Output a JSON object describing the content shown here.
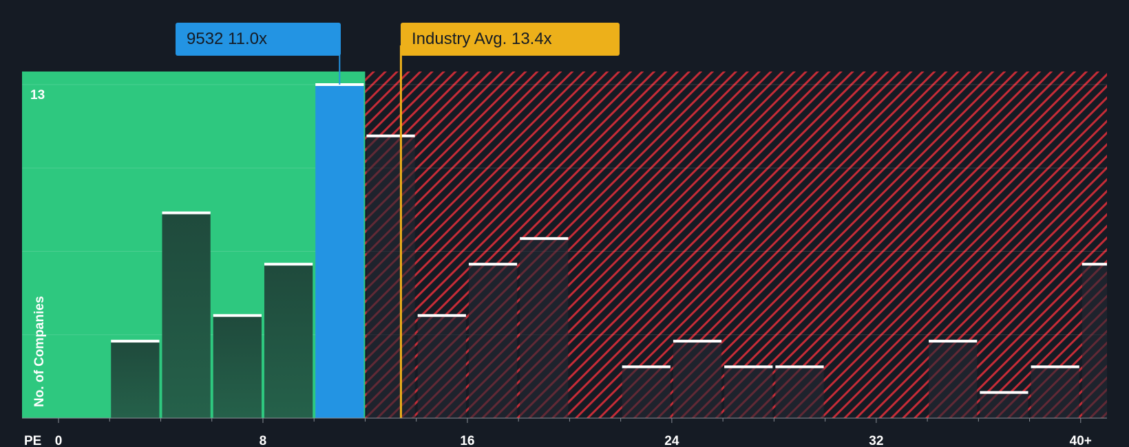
{
  "chart_data": {
    "type": "bar",
    "title": "",
    "xlabel": "PE",
    "ylabel": "No. of Companies",
    "xlim": [
      0,
      40
    ],
    "ylim": [
      0,
      13
    ],
    "x_ticks": [
      0,
      8,
      16,
      24,
      32,
      40
    ],
    "x_tick_labels": [
      "0",
      "8",
      "16",
      "24",
      "32",
      "40+"
    ],
    "y_max_label": "13",
    "bin_width": 2,
    "bin_starts": [
      2,
      4,
      6,
      8,
      10,
      12,
      14,
      16,
      18,
      20,
      22,
      24,
      26,
      28,
      30,
      32,
      34,
      36,
      38,
      40
    ],
    "values": [
      3,
      8,
      4,
      6,
      13,
      11,
      4,
      6,
      7,
      0,
      2,
      3,
      2,
      2,
      0,
      0,
      3,
      1,
      2,
      6
    ],
    "company": {
      "ticker": "9532",
      "pe": 11.0,
      "label": "9532 11.0x",
      "bin_index": 4
    },
    "industry_avg": {
      "pe": 13.4,
      "label": "Industry Avg. 13.4x"
    },
    "colors": {
      "background": "#151b24",
      "below_avg_zone": "#2ec87f",
      "above_avg_zone": "#c62c37",
      "bar_dark": "#1f4a3c",
      "bar_company": "#2394e3",
      "industry_line": "#edb01a",
      "bar_cap": "#ffffff"
    }
  }
}
